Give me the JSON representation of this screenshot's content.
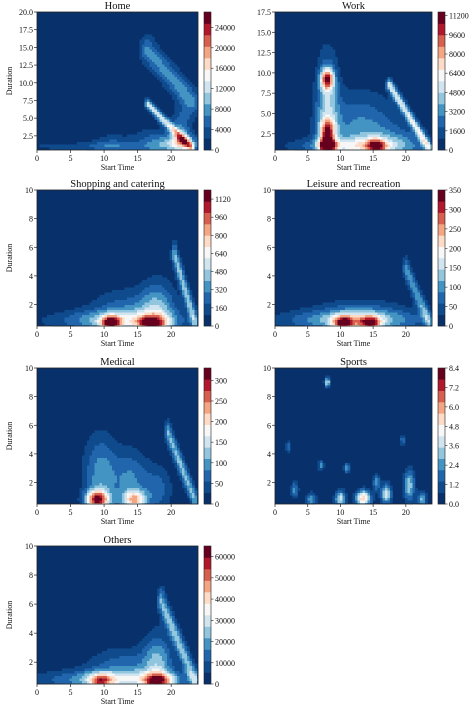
{
  "chart_data": [
    {
      "type": "heatmap",
      "title": "Home",
      "xlabel": "Start Time",
      "ylabel": "Duration",
      "xticks": [
        "0",
        "5",
        "10",
        "15",
        "20"
      ],
      "yticks": [
        "2.5",
        "5.0",
        "7.5",
        "10.0",
        "12.5",
        "15.0",
        "17.5",
        "20.0"
      ],
      "colorbar_ticks": [
        "0",
        "4000",
        "8000",
        "12000",
        "16000",
        "20000",
        "24000"
      ],
      "xlim": [
        0,
        24
      ],
      "ylim": [
        0.5,
        20
      ],
      "colorbar_max": 27000,
      "blobs": [
        {
          "x": 8,
          "y": 1.0,
          "sx": 9,
          "sy": 0.5,
          "a": 0.12
        },
        {
          "x": 11,
          "y": 1.2,
          "sx": 2,
          "sy": 1.2,
          "a": 0.15
        },
        {
          "x": 17.5,
          "y": 1.5,
          "sx": 2.5,
          "sy": 1.5,
          "a": 0.2
        },
        {
          "x": 21.5,
          "y": 1.5,
          "sx": 2,
          "sy": 0.8,
          "a": 0.35
        },
        {
          "x": 21.5,
          "y": 3.0,
          "sx": 1.0,
          "sy": 2.5,
          "a": 0.25
        }
      ],
      "ridges": [
        {
          "x0": 16.5,
          "y0": 14.5,
          "x1": 23.0,
          "y1": 7.5,
          "w": 0.9,
          "a": 0.28
        },
        {
          "x0": 16.5,
          "y0": 7.0,
          "x1": 23.0,
          "y1": 0.8,
          "w": 0.35,
          "a": 0.45
        }
      ]
    },
    {
      "type": "heatmap",
      "title": "Work",
      "xlabel": "Start Time",
      "ylabel": "",
      "xticks": [
        "0",
        "5",
        "10",
        "15",
        "20"
      ],
      "yticks": [
        "2.5",
        "5.0",
        "7.5",
        "10.0",
        "12.5",
        "15.0",
        "17.5"
      ],
      "colorbar_ticks": [
        "0",
        "1600",
        "3200",
        "4800",
        "6400",
        "8000",
        "9600",
        "11200"
      ],
      "xlim": [
        0,
        24
      ],
      "ylim": [
        0.5,
        17.5
      ],
      "colorbar_max": 11500,
      "blobs": [
        {
          "x": 8,
          "y": 9.2,
          "sx": 0.7,
          "sy": 0.9,
          "a": 0.7
        },
        {
          "x": 8,
          "y": 6.0,
          "sx": 1.2,
          "sy": 4.5,
          "a": 0.35
        },
        {
          "x": 8,
          "y": 2.8,
          "sx": 0.8,
          "sy": 1.0,
          "a": 0.6
        },
        {
          "x": 8,
          "y": 1.0,
          "sx": 0.8,
          "sy": 0.6,
          "a": 0.85
        },
        {
          "x": 13,
          "y": 3.5,
          "sx": 4,
          "sy": 3.0,
          "a": 0.25
        },
        {
          "x": 12,
          "y": 1.0,
          "sx": 6,
          "sy": 0.7,
          "a": 0.35
        },
        {
          "x": 15.5,
          "y": 1.0,
          "sx": 1.0,
          "sy": 0.6,
          "a": 0.55
        },
        {
          "x": 18,
          "y": 1.5,
          "sx": 4,
          "sy": 1.5,
          "a": 0.18
        }
      ],
      "ridges": [
        {
          "x0": 17.5,
          "y0": 8.5,
          "x1": 23.5,
          "y1": 0.8,
          "w": 0.35,
          "a": 0.45
        }
      ]
    },
    {
      "type": "heatmap",
      "title": "Shopping and catering",
      "xlabel": "Start Time",
      "ylabel": "Duration",
      "xticks": [
        "0",
        "5",
        "10",
        "15",
        "20"
      ],
      "yticks": [
        "2",
        "4",
        "6",
        "8",
        "10"
      ],
      "colorbar_ticks": [
        "0",
        "160",
        "320",
        "480",
        "640",
        "800",
        "960",
        "1120"
      ],
      "xlim": [
        0,
        24
      ],
      "ylim": [
        0.5,
        10
      ],
      "colorbar_max": 1200,
      "blobs": [
        {
          "x": 12,
          "y": 0.9,
          "sx": 7,
          "sy": 0.5,
          "a": 0.3
        },
        {
          "x": 11,
          "y": 0.7,
          "sx": 1.0,
          "sy": 0.35,
          "a": 0.75
        },
        {
          "x": 13.5,
          "y": 1.4,
          "sx": 4,
          "sy": 1.2,
          "a": 0.22
        },
        {
          "x": 18,
          "y": 1.5,
          "sx": 1.8,
          "sy": 1.5,
          "a": 0.3
        },
        {
          "x": 17,
          "y": 0.7,
          "sx": 1.5,
          "sy": 0.35,
          "a": 0.6
        }
      ],
      "ridges": [
        {
          "x0": 20.5,
          "y0": 5.5,
          "x1": 23.5,
          "y1": 0.8,
          "w": 0.35,
          "a": 0.35
        }
      ]
    },
    {
      "type": "heatmap",
      "title": "Leisure and recreation",
      "xlabel": "Start Time",
      "ylabel": "",
      "xticks": [
        "0",
        "5",
        "10",
        "15",
        "20"
      ],
      "yticks": [
        "2",
        "4",
        "6",
        "8",
        "10"
      ],
      "colorbar_ticks": [
        "0",
        "50",
        "100",
        "150",
        "200",
        "250",
        "300",
        "350"
      ],
      "xlim": [
        0,
        24
      ],
      "ylim": [
        0.5,
        10
      ],
      "colorbar_max": 350,
      "blobs": [
        {
          "x": 12,
          "y": 0.9,
          "sx": 8,
          "sy": 0.5,
          "a": 0.3
        },
        {
          "x": 10.5,
          "y": 0.7,
          "sx": 1.2,
          "sy": 0.35,
          "a": 0.7
        },
        {
          "x": 14.5,
          "y": 0.7,
          "sx": 1.2,
          "sy": 0.35,
          "a": 0.65
        },
        {
          "x": 13,
          "y": 1.3,
          "sx": 5,
          "sy": 0.8,
          "a": 0.2
        }
      ],
      "ridges": [
        {
          "x0": 20.0,
          "y0": 4.5,
          "x1": 23.5,
          "y1": 0.8,
          "w": 0.35,
          "a": 0.3
        }
      ]
    },
    {
      "type": "heatmap",
      "title": "Medical",
      "xlabel": "Start Time",
      "ylabel": "Duration",
      "xticks": [
        "0",
        "5",
        "10",
        "15",
        "20"
      ],
      "yticks": [
        "2",
        "4",
        "6",
        "8",
        "10"
      ],
      "colorbar_ticks": [
        "0",
        "50",
        "100",
        "150",
        "200",
        "250",
        "300"
      ],
      "xlim": [
        0,
        24
      ],
      "ylim": [
        0.5,
        10
      ],
      "colorbar_max": 330,
      "blobs": [
        {
          "x": 9,
          "y": 0.8,
          "sx": 1.2,
          "sy": 0.45,
          "a": 0.8
        },
        {
          "x": 9.5,
          "y": 2.5,
          "sx": 1.8,
          "sy": 2.0,
          "a": 0.3
        },
        {
          "x": 14.5,
          "y": 0.8,
          "sx": 1.2,
          "sy": 0.45,
          "a": 0.55
        },
        {
          "x": 14,
          "y": 2.2,
          "sx": 1.8,
          "sy": 1.5,
          "a": 0.25
        },
        {
          "x": 18,
          "y": 1.5,
          "sx": 1.5,
          "sy": 1.2,
          "a": 0.2
        }
      ],
      "ridges": [
        {
          "x0": 19.5,
          "y0": 5.5,
          "x1": 23.5,
          "y1": 0.8,
          "w": 0.35,
          "a": 0.35
        }
      ]
    },
    {
      "type": "heatmap",
      "title": "Sports",
      "xlabel": "Start Time",
      "ylabel": "",
      "xticks": [
        "0",
        "5",
        "10",
        "15",
        "20"
      ],
      "yticks": [
        "2",
        "4",
        "6",
        "8",
        "10"
      ],
      "colorbar_ticks": [
        "0.0",
        "1.2",
        "2.4",
        "3.6",
        "4.8",
        "6.0",
        "7.2",
        "8.4"
      ],
      "xlim": [
        0,
        24
      ],
      "ylim": [
        0.5,
        10
      ],
      "colorbar_max": 8.4,
      "blobs": [
        {
          "x": 13.5,
          "y": 0.9,
          "sx": 0.8,
          "sy": 0.4,
          "a": 0.65
        },
        {
          "x": 10,
          "y": 0.9,
          "sx": 0.6,
          "sy": 0.4,
          "a": 0.45
        },
        {
          "x": 17,
          "y": 1.2,
          "sx": 0.6,
          "sy": 0.5,
          "a": 0.45
        },
        {
          "x": 20.5,
          "y": 1.8,
          "sx": 0.6,
          "sy": 0.8,
          "a": 0.4
        },
        {
          "x": 5.5,
          "y": 0.8,
          "sx": 0.6,
          "sy": 0.35,
          "a": 0.3
        },
        {
          "x": 8,
          "y": 9.0,
          "sx": 0.3,
          "sy": 0.25,
          "a": 0.45
        },
        {
          "x": 11,
          "y": 3.0,
          "sx": 0.3,
          "sy": 0.25,
          "a": 0.35
        },
        {
          "x": 7,
          "y": 3.2,
          "sx": 0.3,
          "sy": 0.25,
          "a": 0.3
        },
        {
          "x": 2,
          "y": 4.5,
          "sx": 0.3,
          "sy": 0.25,
          "a": 0.25
        },
        {
          "x": 19.5,
          "y": 5.0,
          "sx": 0.3,
          "sy": 0.25,
          "a": 0.25
        },
        {
          "x": 3,
          "y": 1.5,
          "sx": 0.4,
          "sy": 0.4,
          "a": 0.3
        },
        {
          "x": 15.5,
          "y": 2.0,
          "sx": 0.4,
          "sy": 0.4,
          "a": 0.3
        },
        {
          "x": 22.5,
          "y": 0.8,
          "sx": 0.5,
          "sy": 0.4,
          "a": 0.35
        }
      ],
      "ridges": []
    },
    {
      "type": "heatmap",
      "title": "Others",
      "xlabel": "Start Time",
      "ylabel": "Duration",
      "xticks": [
        "0",
        "5",
        "10",
        "15",
        "20"
      ],
      "yticks": [
        "2",
        "4",
        "6",
        "8",
        "10"
      ],
      "colorbar_ticks": [
        "0",
        "10000",
        "20000",
        "30000",
        "40000",
        "50000",
        "60000"
      ],
      "xlim": [
        0,
        24
      ],
      "ylim": [
        0.5,
        10
      ],
      "colorbar_max": 65000,
      "blobs": [
        {
          "x": 12,
          "y": 0.8,
          "sx": 8,
          "sy": 0.45,
          "a": 0.35
        },
        {
          "x": 13,
          "y": 1.6,
          "sx": 4,
          "sy": 1.0,
          "a": 0.22
        },
        {
          "x": 18,
          "y": 2.0,
          "sx": 1.5,
          "sy": 1.5,
          "a": 0.3
        },
        {
          "x": 18,
          "y": 0.7,
          "sx": 1.5,
          "sy": 0.35,
          "a": 0.55
        },
        {
          "x": 9.5,
          "y": 0.7,
          "sx": 1.2,
          "sy": 0.35,
          "a": 0.5
        }
      ],
      "ridges": [
        {
          "x0": 18.5,
          "y0": 6.2,
          "x1": 23.5,
          "y1": 0.8,
          "w": 0.4,
          "a": 0.35
        }
      ]
    }
  ]
}
